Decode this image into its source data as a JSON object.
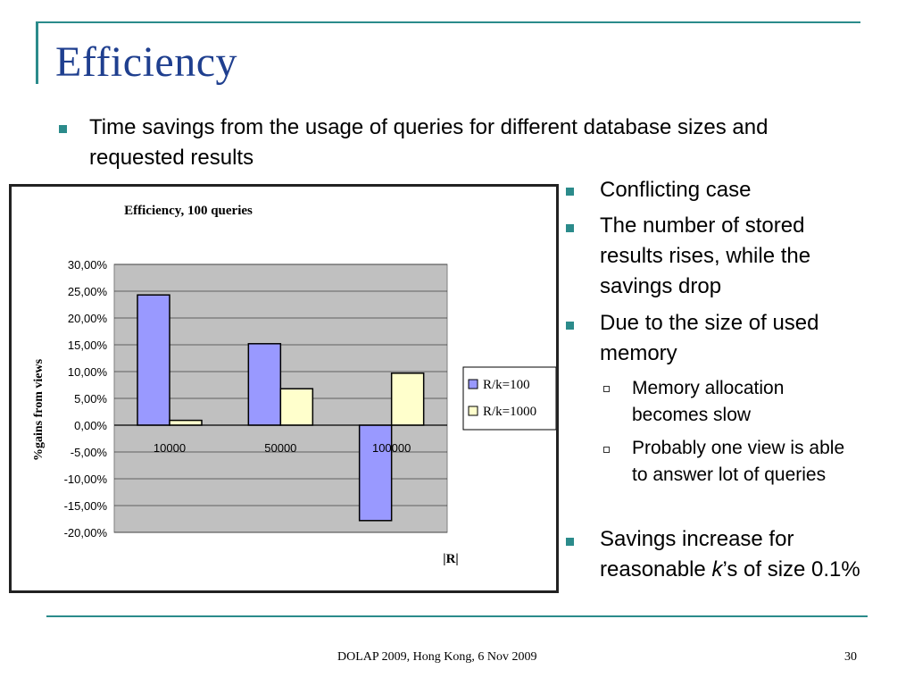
{
  "slide": {
    "title": "Efficiency",
    "main_bullet": "Time savings from the usage of queries for different database sizes and requested results",
    "right_bullets": [
      "Conflicting case",
      "The number of stored results rises, while the savings drop",
      "Due to the size of used memory"
    ],
    "sub_bullets": [
      "Memory allocation becomes slow",
      "Probably one view is able to answer lot of queries"
    ],
    "last_bullet": {
      "pre": "Savings increase for reasonable ",
      "italic": "k",
      "post": "’s of size 0.1%"
    },
    "footer": "DOLAP 2009, Hong Kong,  6 Nov 2009",
    "page_number": "30",
    "colors": {
      "accent": "#2b8b8b",
      "title": "#1f3f8f",
      "bar1": "#9999ff",
      "bar2": "#ffffcc",
      "plot_bg": "#c0c0c0"
    }
  },
  "chart_data": {
    "type": "bar",
    "title": "Efficiency, 100 queries",
    "xlabel": "|R|",
    "ylabel": "%gains from views",
    "categories": [
      "10000",
      "50000",
      "100000"
    ],
    "series": [
      {
        "name": "R/k=100",
        "values": [
          24.3,
          15.2,
          -17.8
        ]
      },
      {
        "name": "R/k=1000",
        "values": [
          0.9,
          6.8,
          9.7
        ]
      }
    ],
    "ylim": [
      -20,
      30
    ],
    "yticks": [
      "30,00%",
      "25,00%",
      "20,00%",
      "15,00%",
      "10,00%",
      "5,00%",
      "0,00%",
      "-5,00%",
      "-10,00%",
      "-15,00%",
      "-20,00%"
    ],
    "grid": true,
    "legend": "right"
  }
}
